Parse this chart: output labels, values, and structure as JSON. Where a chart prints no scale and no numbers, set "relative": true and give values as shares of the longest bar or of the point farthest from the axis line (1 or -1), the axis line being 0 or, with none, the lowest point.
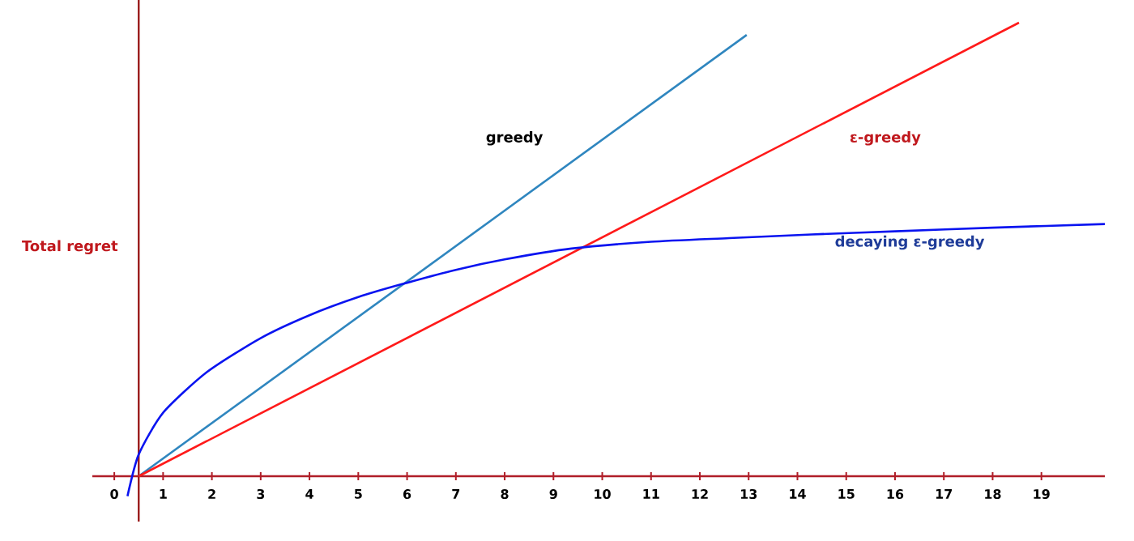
{
  "chart_data": {
    "type": "line",
    "relative": true,
    "ylabel": "Total regret",
    "xlim": [
      -0.45,
      20.3
    ],
    "xticks": [
      0,
      1,
      2,
      3,
      4,
      5,
      6,
      7,
      8,
      9,
      10,
      11,
      12,
      13,
      14,
      15,
      16,
      17,
      18,
      19
    ],
    "tick_labels": "x",
    "grid": false,
    "legend": false,
    "marker": "none",
    "line_style": "solid",
    "ref_lines": [
      {
        "axis": "x",
        "value": 0.5,
        "color": "#9b1c1c"
      }
    ],
    "series": [
      {
        "name": "greedy",
        "color": "#2f86bf",
        "x": [
          0.5,
          12.96
        ],
        "values": [
          0,
          0.973
        ]
      },
      {
        "name": "ε-greedy",
        "color": "#ff1a1a",
        "x": [
          0.5,
          18.54
        ],
        "values": [
          0,
          1
        ]
      },
      {
        "name": "decaying ε-greedy",
        "color": "#0a14f0",
        "x": [
          0.27,
          0.5,
          1.0,
          1.89,
          2.99,
          4.0,
          5.0,
          5.88,
          7.0,
          8.0,
          9.37,
          11.0,
          12.6,
          14.29,
          16.0,
          18.0,
          20.3
        ],
        "values": [
          -0.044,
          0.048,
          0.14,
          0.229,
          0.304,
          0.355,
          0.395,
          0.423,
          0.455,
          0.478,
          0.502,
          0.517,
          0.525,
          0.533,
          0.54,
          0.548,
          0.556
        ]
      }
    ]
  }
}
